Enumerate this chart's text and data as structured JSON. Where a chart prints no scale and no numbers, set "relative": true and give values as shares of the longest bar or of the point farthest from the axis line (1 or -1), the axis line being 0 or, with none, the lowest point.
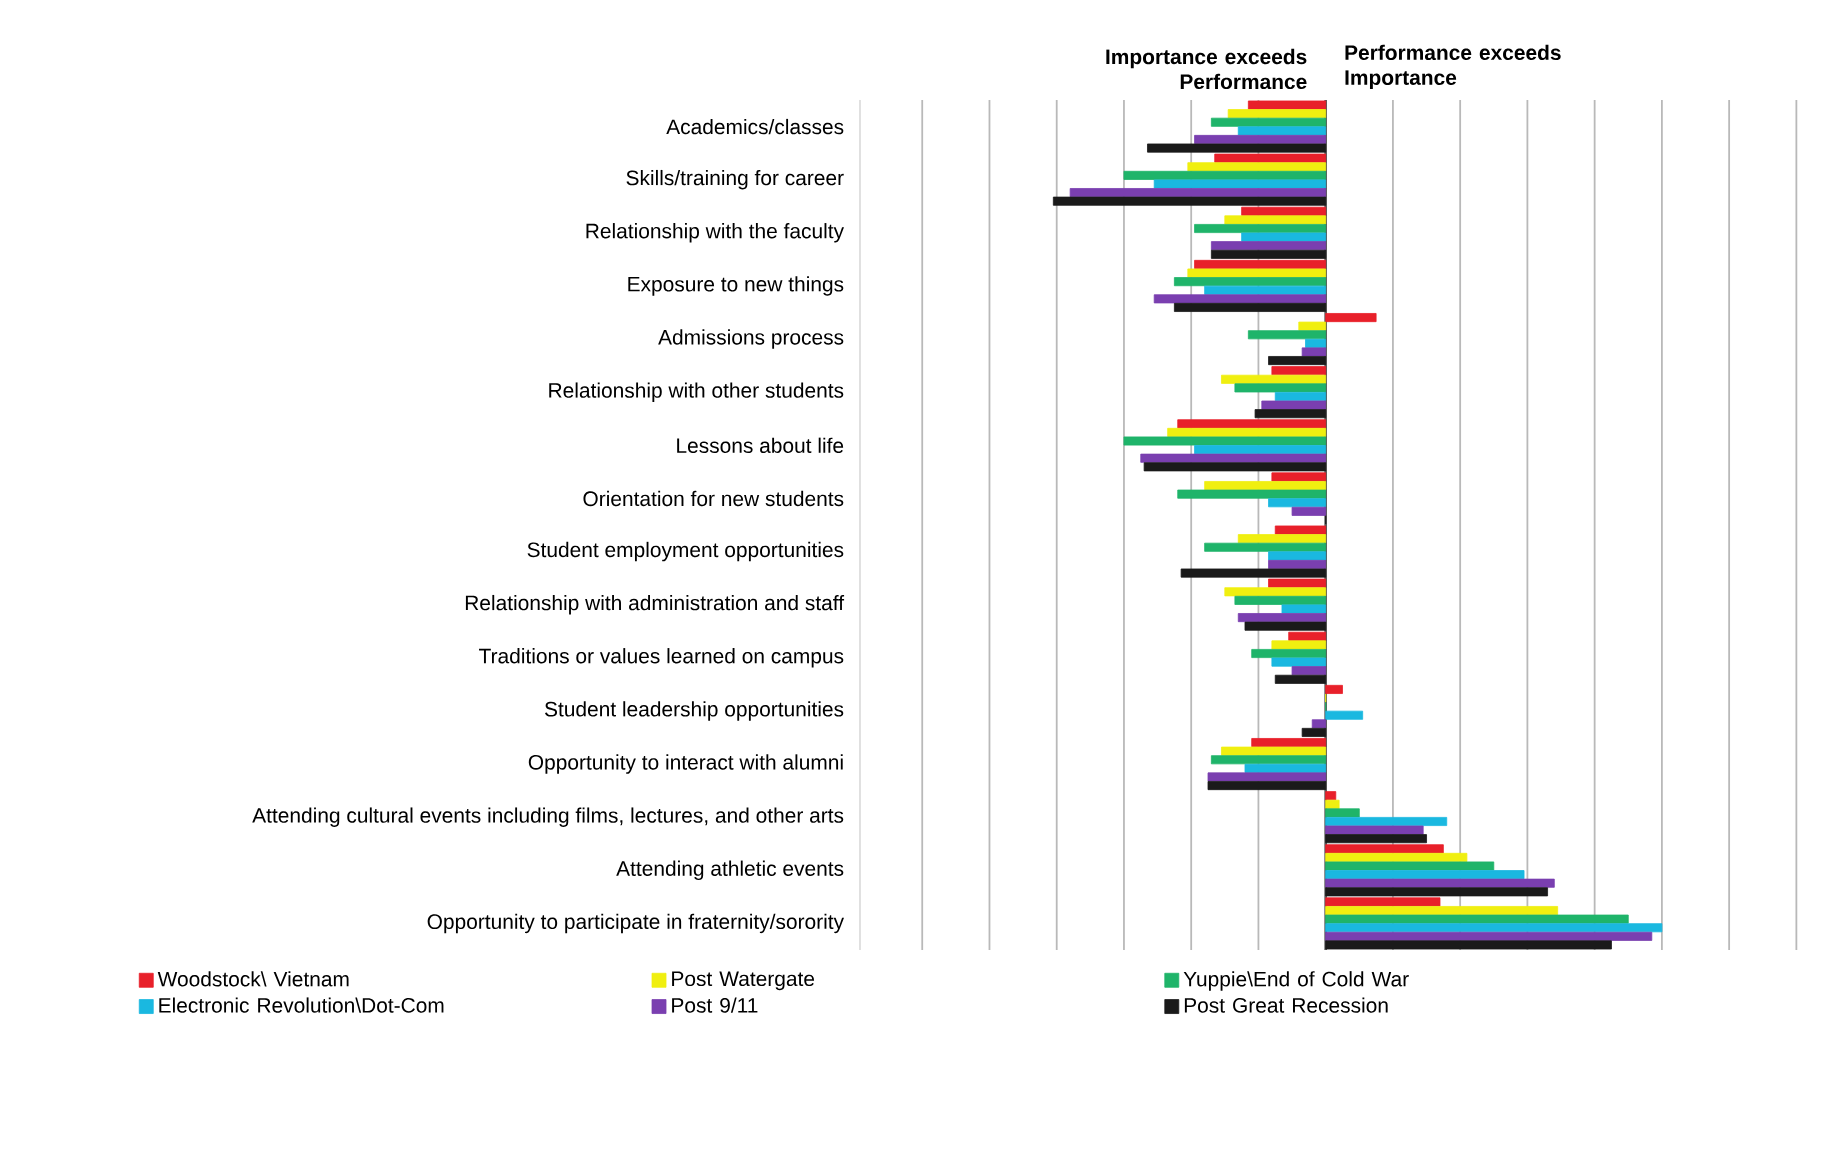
{
  "chart_data": {
    "type": "bar",
    "orientation": "horizontal",
    "relative": true,
    "grid": "x",
    "legend": "bottom",
    "annotations": [
      "Importance exceeds Performance",
      "Performance exceeds Importance"
    ],
    "categories": [
      "Academics/classes",
      "Skills/training for career",
      "Relationship with the faculty",
      "Exposure to new things",
      "Admissions process",
      "Relationship with other students",
      "Lessons about life",
      "Orientation for new students",
      "Student employment opportunities",
      "Relationship with administration and staff",
      "Traditions or values learned on campus",
      "Student leadership opportunities",
      "Opportunity to interact with alumni",
      "Attending cultural events including films, lectures, and other arts",
      "Attending athletic events",
      "Opportunity to participate in fraternity/sorority"
    ],
    "series": [
      {
        "name": "Woodstock\\ Vietnam",
        "color": "#e8202a",
        "values": [
          -0.23,
          -0.33,
          -0.25,
          -0.39,
          0.15,
          -0.16,
          -0.44,
          -0.16,
          -0.15,
          -0.17,
          -0.11,
          0.05,
          -0.22,
          0.03,
          0.35,
          0.34
        ]
      },
      {
        "name": "Post Watergate",
        "color": "#f0ef10",
        "values": [
          -0.29,
          -0.41,
          -0.3,
          -0.41,
          -0.08,
          -0.31,
          -0.47,
          -0.36,
          -0.26,
          -0.3,
          -0.16,
          0,
          -0.31,
          0.04,
          0.42,
          0.69
        ]
      },
      {
        "name": "Yuppie\\End of Cold War",
        "color": "#1fb46a",
        "values": [
          -0.34,
          -0.6,
          -0.39,
          -0.45,
          -0.23,
          -0.27,
          -0.6,
          -0.44,
          -0.36,
          -0.27,
          -0.22,
          0,
          -0.34,
          0.1,
          0.5,
          0.9
        ]
      },
      {
        "name": "Electronic Revolution\\Dot-Com",
        "color": "#1ab8e0",
        "values": [
          -0.26,
          -0.51,
          -0.25,
          -0.36,
          -0.06,
          -0.15,
          -0.39,
          -0.17,
          -0.17,
          -0.13,
          -0.16,
          0.11,
          -0.24,
          0.36,
          0.59,
          1
        ]
      },
      {
        "name": "Post 9/11",
        "color": "#7a3fb0",
        "values": [
          -0.39,
          -0.76,
          -0.34,
          -0.51,
          -0.07,
          -0.19,
          -0.55,
          -0.1,
          -0.17,
          -0.26,
          -0.1,
          -0.04,
          -0.35,
          0.29,
          0.68,
          0.97
        ]
      },
      {
        "name": "Post Great Recession",
        "color": "#1a1a1a",
        "values": [
          -0.53,
          -0.81,
          -0.34,
          -0.45,
          -0.17,
          -0.21,
          -0.54,
          0,
          -0.43,
          -0.24,
          -0.15,
          -0.07,
          -0.35,
          0.3,
          0.66,
          0.85
        ]
      }
    ]
  }
}
